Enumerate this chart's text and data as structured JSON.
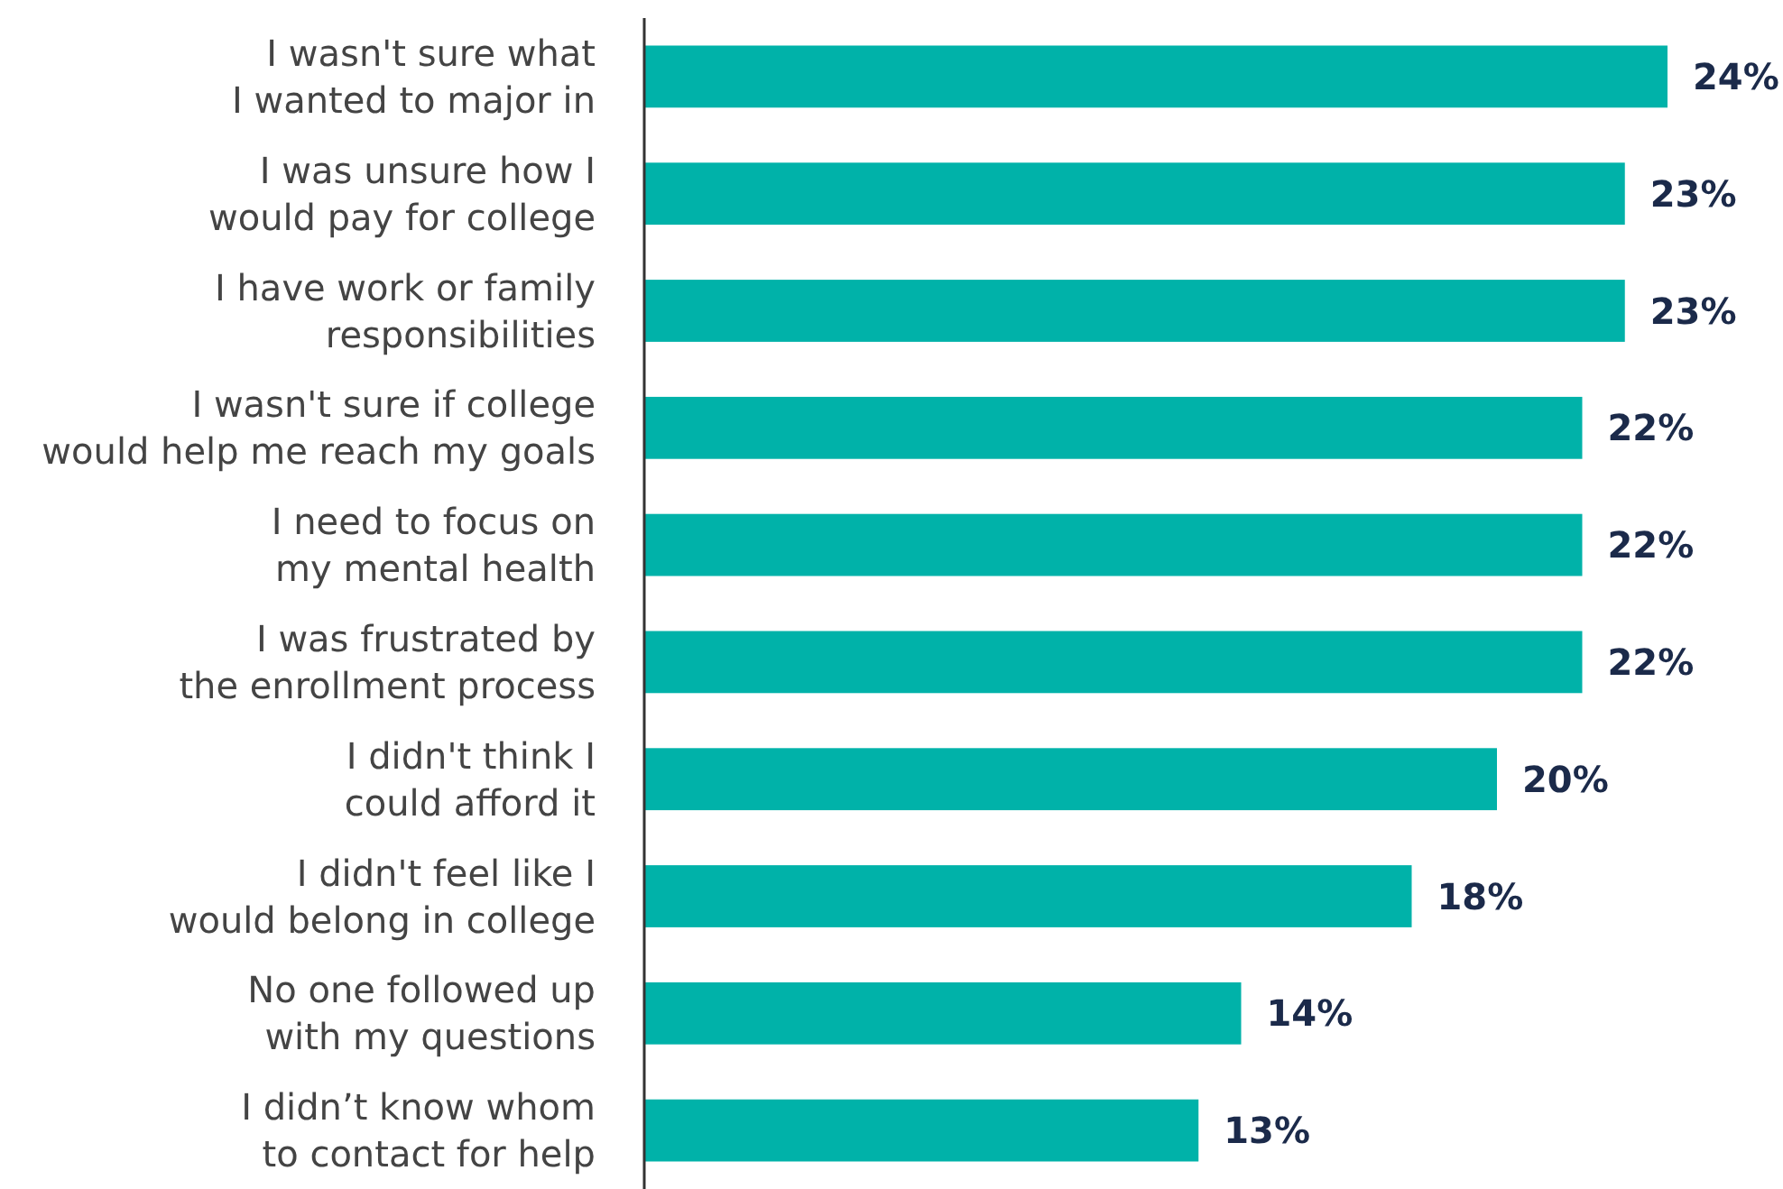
{
  "chart_data": {
    "type": "bar",
    "orientation": "horizontal",
    "categories": [
      "I wasn't sure what I wanted to major in",
      "I was unsure how I would pay for college",
      "I have work or family responsibilities",
      "I wasn't sure if college would help me reach my goals",
      "I need to focus on my mental health",
      "I was frustrated by the enrollment process",
      "I didn't think I could afford it",
      "I didn't feel like I would belong in college",
      "No one followed up with my questions",
      "I didn’t know whom to contact for help"
    ],
    "values": [
      24,
      23,
      23,
      22,
      22,
      22,
      20,
      18,
      14,
      13
    ],
    "color": "#00b2a9",
    "data_labels": true,
    "value_labels": [
      "24%",
      "23%",
      "23%",
      "22%",
      "22%",
      "22%",
      "20%",
      "18%",
      "14%",
      "13%"
    ]
  }
}
